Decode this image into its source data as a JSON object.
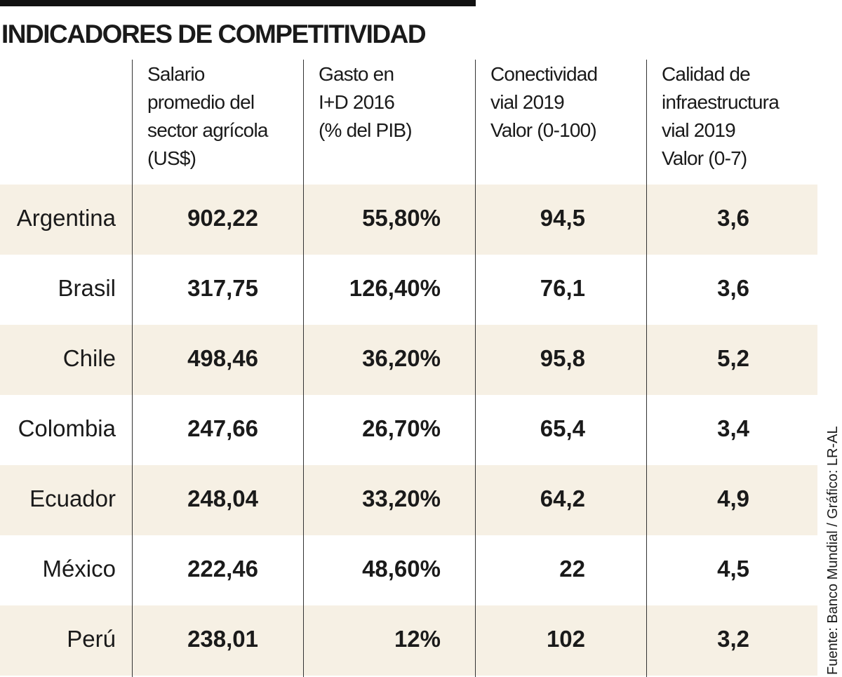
{
  "header": {
    "title": "INDICADORES DE COMPETITIVIDAD"
  },
  "table": {
    "columns": [
      [
        "Salario",
        "promedio del",
        "sector agrícola",
        "(US$)"
      ],
      [
        "Gasto en",
        "I+D 2016",
        "(% del PIB)"
      ],
      [
        "Conectividad",
        "vial 2019",
        "Valor (0-100)"
      ],
      [
        "Calidad de",
        "infraestructura",
        "vial 2019",
        "Valor (0-7)"
      ]
    ],
    "rows": [
      [
        "Argentina",
        "902,22",
        "55,80%",
        "94,5",
        "3,6"
      ],
      [
        "Brasil",
        "317,75",
        "126,40%",
        "76,1",
        "3,6"
      ],
      [
        "Chile",
        "498,46",
        "36,20%",
        "95,8",
        "5,2"
      ],
      [
        "Colombia",
        "247,66",
        "26,70%",
        "65,4",
        "3,4"
      ],
      [
        "Ecuador",
        "248,04",
        "33,20%",
        "64,2",
        "4,9"
      ],
      [
        "México",
        "222,46",
        "48,60%",
        "22",
        "4,5"
      ],
      [
        "Perú",
        "238,01",
        "12%",
        "102",
        "3,2"
      ]
    ]
  },
  "source": "Fuente: Banco Mundial / Gráfico: LR-AL"
}
